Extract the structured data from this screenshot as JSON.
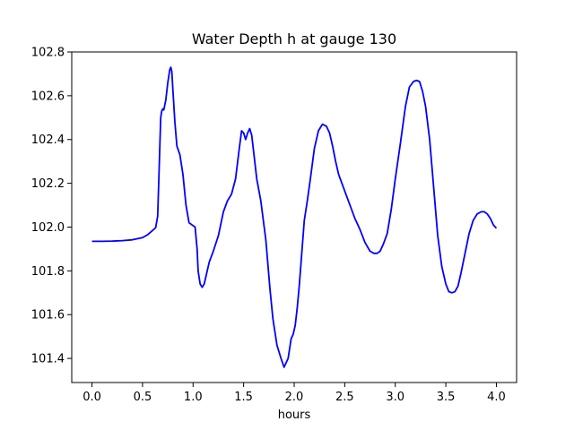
{
  "chart_data": {
    "type": "line",
    "title": "Water Depth h at gauge 130",
    "xlabel": "hours",
    "ylabel": "",
    "xlim": [
      -0.2,
      4.2
    ],
    "ylim": [
      101.29,
      102.8
    ],
    "xticks": [
      0.0,
      0.5,
      1.0,
      1.5,
      2.0,
      2.5,
      3.0,
      3.5,
      4.0
    ],
    "xtick_labels": [
      "0.0",
      "0.5",
      "1.0",
      "1.5",
      "2.0",
      "2.5",
      "3.0",
      "3.5",
      "4.0"
    ],
    "yticks": [
      101.4,
      101.6,
      101.8,
      102.0,
      102.2,
      102.4,
      102.6,
      102.8
    ],
    "ytick_labels": [
      "101.4",
      "101.6",
      "101.8",
      "102.0",
      "102.2",
      "102.4",
      "102.6",
      "102.8"
    ],
    "grid": false,
    "legend": "none",
    "series": [
      {
        "color": "#0000ff",
        "x": [
          0.0,
          0.1,
          0.2,
          0.3,
          0.4,
          0.5,
          0.55,
          0.6,
          0.63,
          0.65,
          0.66,
          0.67,
          0.68,
          0.69,
          0.7,
          0.71,
          0.73,
          0.75,
          0.77,
          0.78,
          0.79,
          0.8,
          0.82,
          0.84,
          0.87,
          0.9,
          0.93,
          0.96,
          0.99,
          1.02,
          1.04,
          1.05,
          1.07,
          1.09,
          1.11,
          1.13,
          1.16,
          1.2,
          1.25,
          1.3,
          1.34,
          1.38,
          1.42,
          1.46,
          1.48,
          1.5,
          1.52,
          1.54,
          1.56,
          1.58,
          1.6,
          1.63,
          1.67,
          1.72,
          1.76,
          1.79,
          1.83,
          1.87,
          1.9,
          1.94,
          1.97,
          1.99,
          2.01,
          2.03,
          2.05,
          2.07,
          2.1,
          2.13,
          2.16,
          2.2,
          2.24,
          2.28,
          2.32,
          2.35,
          2.38,
          2.41,
          2.44,
          2.48,
          2.52,
          2.56,
          2.6,
          2.65,
          2.7,
          2.75,
          2.79,
          2.82,
          2.85,
          2.88,
          2.92,
          2.96,
          3.0,
          3.05,
          3.1,
          3.14,
          3.18,
          3.21,
          3.24,
          3.27,
          3.3,
          3.34,
          3.38,
          3.42,
          3.46,
          3.5,
          3.53,
          3.56,
          3.59,
          3.62,
          3.65,
          3.69,
          3.73,
          3.77,
          3.81,
          3.85,
          3.88,
          3.91,
          3.94,
          3.97,
          4.0
        ],
        "y": [
          101.935,
          101.935,
          101.936,
          101.938,
          101.942,
          101.952,
          101.965,
          101.985,
          101.997,
          102.05,
          102.2,
          102.35,
          102.5,
          102.53,
          102.54,
          102.535,
          102.58,
          102.66,
          102.72,
          102.73,
          102.71,
          102.63,
          102.48,
          102.37,
          102.33,
          102.24,
          102.1,
          102.02,
          102.01,
          102.0,
          101.9,
          101.8,
          101.74,
          101.725,
          101.74,
          101.78,
          101.84,
          101.89,
          101.96,
          102.07,
          102.12,
          102.15,
          102.22,
          102.37,
          102.44,
          102.43,
          102.4,
          102.43,
          102.45,
          102.42,
          102.34,
          102.22,
          102.12,
          101.94,
          101.72,
          101.58,
          101.46,
          101.4,
          101.36,
          101.4,
          101.49,
          101.51,
          101.55,
          101.63,
          101.73,
          101.85,
          102.03,
          102.12,
          102.22,
          102.36,
          102.44,
          102.47,
          102.46,
          102.43,
          102.37,
          102.3,
          102.24,
          102.19,
          102.14,
          102.09,
          102.04,
          101.99,
          101.93,
          101.89,
          101.88,
          101.88,
          101.89,
          101.92,
          101.97,
          102.08,
          102.22,
          102.38,
          102.55,
          102.64,
          102.665,
          102.67,
          102.665,
          102.62,
          102.55,
          102.4,
          102.18,
          101.96,
          101.82,
          101.74,
          101.705,
          101.7,
          101.705,
          101.73,
          101.79,
          101.88,
          101.97,
          102.03,
          102.06,
          102.07,
          102.07,
          102.06,
          102.04,
          102.01,
          101.995
        ]
      }
    ]
  }
}
